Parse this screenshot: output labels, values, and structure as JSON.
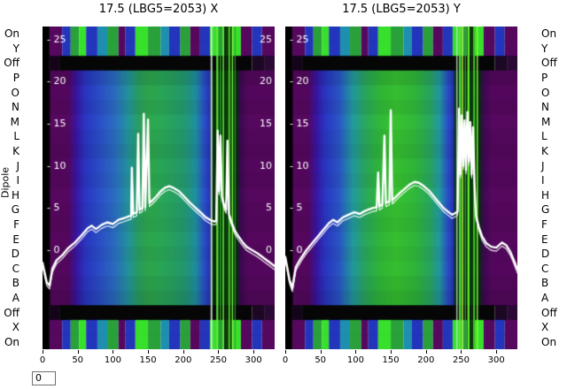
{
  "controls": {
    "frame_value": "0"
  },
  "axes": {
    "dipole_label": "Dipole",
    "row_labels": [
      "On",
      "Y",
      "Off",
      "P",
      "O",
      "N",
      "M",
      "L",
      "K",
      "J",
      "I",
      "H",
      "G",
      "F",
      "E",
      "D",
      "C",
      "B",
      "A",
      "Off",
      "X",
      "On"
    ],
    "row_types": [
      "stripe",
      "stripe",
      "off",
      "main",
      "main",
      "main",
      "main",
      "main",
      "main",
      "main",
      "main",
      "main",
      "main",
      "main",
      "main",
      "main",
      "main",
      "main",
      "main",
      "off",
      "stripe",
      "stripe"
    ],
    "row_shade": [
      0,
      0,
      0,
      0.1,
      0.02,
      0.06,
      0,
      0.04,
      0.08,
      0.02,
      0.05,
      0,
      0.03,
      0.06,
      0.01,
      0.05,
      0.02,
      0.07,
      0.12,
      0,
      0,
      0
    ],
    "x_tick_labels": [
      "0",
      "50",
      "100",
      "150",
      "200",
      "250",
      "300"
    ],
    "x_tick_values": [
      0,
      50,
      100,
      150,
      200,
      250,
      300
    ],
    "value_axis": {
      "ticks": [
        25,
        20,
        15,
        10,
        5,
        0
      ],
      "zero_frac": 0.693,
      "unit_frac": 0.0261
    }
  },
  "heatmap": {
    "stripe_segments": [
      [
        0,
        10,
        "#000000"
      ],
      [
        10,
        28,
        "#55085e"
      ],
      [
        28,
        40,
        "#2235bb"
      ],
      [
        40,
        52,
        "#29a03a"
      ],
      [
        52,
        62,
        "#37e02a"
      ],
      [
        62,
        78,
        "#2235bb"
      ],
      [
        78,
        92,
        "#1e8fae"
      ],
      [
        92,
        108,
        "#29a03a"
      ],
      [
        108,
        118,
        "#55085e"
      ],
      [
        118,
        132,
        "#2235bb"
      ],
      [
        132,
        150,
        "#37e02a"
      ],
      [
        150,
        168,
        "#29a03a"
      ],
      [
        168,
        180,
        "#1e8fae"
      ],
      [
        180,
        196,
        "#2235bb"
      ],
      [
        196,
        210,
        "#29a03a"
      ],
      [
        210,
        224,
        "#55085e"
      ],
      [
        224,
        238,
        "#2235bb"
      ],
      [
        238,
        248,
        "#37e02a"
      ],
      [
        248,
        258,
        "#29a03a"
      ],
      [
        258,
        270,
        "#0a300a"
      ],
      [
        270,
        282,
        "#37e02a"
      ],
      [
        282,
        298,
        "#55085e"
      ],
      [
        298,
        312,
        "#2235bb"
      ],
      [
        312,
        330,
        "#55085e"
      ]
    ],
    "off_segments": [
      [
        0,
        10,
        "#000000"
      ],
      [
        10,
        24,
        "#14041a"
      ],
      [
        24,
        298,
        "#060606"
      ],
      [
        298,
        316,
        "#1c0724"
      ],
      [
        316,
        330,
        "#2a0a34"
      ]
    ]
  },
  "chart_data": [
    {
      "type": "heatmap",
      "panel": "X",
      "title": "17.5 (LBG5=2053) X",
      "x_range": [
        0,
        330
      ],
      "right_labels": true,
      "field_stops": [
        [
          0,
          "#000000"
        ],
        [
          9,
          "#000000"
        ],
        [
          12,
          "#55085e"
        ],
        [
          36,
          "#55085e"
        ],
        [
          48,
          "#3a15a2"
        ],
        [
          60,
          "#2a35c2"
        ],
        [
          82,
          "#2b50c8"
        ],
        [
          104,
          "#2a70c0"
        ],
        [
          122,
          "#23949c"
        ],
        [
          138,
          "#2aa05e"
        ],
        [
          152,
          "#2ea84c"
        ],
        [
          170,
          "#2aa858"
        ],
        [
          188,
          "#27a062"
        ],
        [
          205,
          "#239878"
        ],
        [
          218,
          "#1f8fa2"
        ],
        [
          230,
          "#2a50c8"
        ],
        [
          237,
          "#2937bd"
        ],
        [
          241,
          "#06300a"
        ],
        [
          276,
          "#06300a"
        ],
        [
          281,
          "#3a0a52"
        ],
        [
          292,
          "#55085e"
        ],
        [
          330,
          "#55085e"
        ]
      ],
      "overlay_stripes": [
        {
          "x": 239,
          "w": 2.5,
          "c": "#d8ece4",
          "a": 0.85
        },
        {
          "x": 247,
          "w": 3,
          "c": "#5ef03a",
          "a": 0.9
        },
        {
          "x": 252,
          "w": 2,
          "c": "#2f9e2f",
          "a": 0.9
        },
        {
          "x": 256,
          "w": 2,
          "c": "#66ff33",
          "a": 0.9
        },
        {
          "x": 260,
          "w": 2,
          "c": "#123f12",
          "a": 0.9
        },
        {
          "x": 264,
          "w": 3,
          "c": "#44cc22",
          "a": 0.9
        },
        {
          "x": 269,
          "w": 2,
          "c": "#7dff3f",
          "a": 0.9
        },
        {
          "x": 273,
          "w": 1.5,
          "c": "#2f9e2f",
          "a": 0.9
        }
      ],
      "curve": [
        [
          0,
          -1.5
        ],
        [
          6,
          -3.8
        ],
        [
          10,
          -4.2
        ],
        [
          14,
          -2.2
        ],
        [
          20,
          -1.2
        ],
        [
          28,
          -0.6
        ],
        [
          36,
          0.2
        ],
        [
          46,
          0.9
        ],
        [
          56,
          1.8
        ],
        [
          64,
          2.6
        ],
        [
          70,
          2.9
        ],
        [
          76,
          2.5
        ],
        [
          84,
          3.0
        ],
        [
          92,
          3.3
        ],
        [
          100,
          3.1
        ],
        [
          108,
          3.6
        ],
        [
          116,
          3.8
        ],
        [
          122,
          4.0
        ],
        [
          126,
          4.1
        ],
        [
          127,
          9.8
        ],
        [
          129,
          4.3
        ],
        [
          134,
          4.5
        ],
        [
          136,
          13.8
        ],
        [
          138,
          4.8
        ],
        [
          142,
          5.0
        ],
        [
          144,
          16.2
        ],
        [
          146,
          5.1
        ],
        [
          150,
          15.5
        ],
        [
          152,
          5.6
        ],
        [
          156,
          5.9
        ],
        [
          162,
          6.4
        ],
        [
          168,
          7.0
        ],
        [
          174,
          7.4
        ],
        [
          180,
          7.6
        ],
        [
          186,
          7.4
        ],
        [
          194,
          7.0
        ],
        [
          202,
          6.3
        ],
        [
          210,
          5.6
        ],
        [
          218,
          5.0
        ],
        [
          226,
          4.4
        ],
        [
          232,
          3.9
        ],
        [
          238,
          3.6
        ],
        [
          244,
          3.4
        ],
        [
          247,
          3.5
        ],
        [
          249,
          14.2
        ],
        [
          251,
          7.0
        ],
        [
          253,
          13.6
        ],
        [
          255,
          6.4
        ],
        [
          258,
          5.4
        ],
        [
          261,
          4.8
        ],
        [
          263,
          13.0
        ],
        [
          265,
          4.3
        ],
        [
          269,
          3.3
        ],
        [
          273,
          2.4
        ],
        [
          278,
          1.7
        ],
        [
          284,
          1.0
        ],
        [
          290,
          0.4
        ],
        [
          298,
          0.0
        ],
        [
          306,
          -0.4
        ],
        [
          314,
          -0.9
        ],
        [
          322,
          -1.4
        ],
        [
          330,
          -1.9
        ]
      ]
    },
    {
      "type": "heatmap",
      "panel": "Y",
      "title": "17.5 (LBG5=2053) Y",
      "x_range": [
        0,
        330
      ],
      "right_labels": false,
      "field_stops": [
        [
          0,
          "#000000"
        ],
        [
          9,
          "#000000"
        ],
        [
          12,
          "#55085e"
        ],
        [
          32,
          "#55085e"
        ],
        [
          44,
          "#3a15a2"
        ],
        [
          56,
          "#2a35c2"
        ],
        [
          76,
          "#2a55c8"
        ],
        [
          96,
          "#239aa0"
        ],
        [
          114,
          "#2aa85c"
        ],
        [
          134,
          "#30b83a"
        ],
        [
          158,
          "#38c230"
        ],
        [
          184,
          "#30b83a"
        ],
        [
          204,
          "#2aa85c"
        ],
        [
          219,
          "#239aa0"
        ],
        [
          231,
          "#2a50c8"
        ],
        [
          238,
          "#2937bd"
        ],
        [
          242,
          "#06300a"
        ],
        [
          276,
          "#06300a"
        ],
        [
          281,
          "#3a0a52"
        ],
        [
          293,
          "#55085e"
        ],
        [
          330,
          "#55085e"
        ]
      ],
      "overlay_stripes": [
        {
          "x": 243,
          "w": 2,
          "c": "#bfe8c2",
          "a": 0.8
        },
        {
          "x": 247,
          "w": 3,
          "c": "#5ef03a",
          "a": 0.9
        },
        {
          "x": 251,
          "w": 2,
          "c": "#baff52",
          "a": 0.9
        },
        {
          "x": 255,
          "w": 2,
          "c": "#2f9e2f",
          "a": 0.9
        },
        {
          "x": 259,
          "w": 3,
          "c": "#66ff33",
          "a": 0.9
        },
        {
          "x": 264,
          "w": 2,
          "c": "#123f12",
          "a": 0.9
        },
        {
          "x": 267,
          "w": 3,
          "c": "#44cc22",
          "a": 0.9
        },
        {
          "x": 272,
          "w": 2,
          "c": "#7dff3f",
          "a": 0.9
        }
      ],
      "curve": [
        [
          0,
          -0.8
        ],
        [
          6,
          -3.5
        ],
        [
          10,
          -4.5
        ],
        [
          15,
          -2.0
        ],
        [
          22,
          -1.0
        ],
        [
          30,
          0.0
        ],
        [
          38,
          0.8
        ],
        [
          46,
          1.6
        ],
        [
          54,
          2.4
        ],
        [
          62,
          3.2
        ],
        [
          68,
          3.6
        ],
        [
          74,
          3.3
        ],
        [
          82,
          3.9
        ],
        [
          90,
          4.2
        ],
        [
          98,
          4.5
        ],
        [
          106,
          4.3
        ],
        [
          112,
          4.6
        ],
        [
          118,
          4.8
        ],
        [
          124,
          5.0
        ],
        [
          130,
          5.1
        ],
        [
          132,
          9.2
        ],
        [
          134,
          5.2
        ],
        [
          138,
          5.4
        ],
        [
          141,
          13.6
        ],
        [
          143,
          5.6
        ],
        [
          148,
          5.8
        ],
        [
          150,
          16.6
        ],
        [
          152,
          5.9
        ],
        [
          157,
          6.3
        ],
        [
          163,
          6.8
        ],
        [
          170,
          7.3
        ],
        [
          177,
          7.8
        ],
        [
          184,
          8.1
        ],
        [
          190,
          8.0
        ],
        [
          197,
          7.6
        ],
        [
          204,
          7.1
        ],
        [
          211,
          6.4
        ],
        [
          218,
          5.7
        ],
        [
          225,
          5.0
        ],
        [
          231,
          4.6
        ],
        [
          237,
          4.2
        ],
        [
          242,
          4.4
        ],
        [
          245,
          4.6
        ],
        [
          247,
          16.8
        ],
        [
          249,
          9.0
        ],
        [
          251,
          16.0
        ],
        [
          253,
          10.0
        ],
        [
          255,
          15.4
        ],
        [
          257,
          9.5
        ],
        [
          259,
          16.4
        ],
        [
          261,
          10.5
        ],
        [
          263,
          15.2
        ],
        [
          265,
          9.0
        ],
        [
          267,
          14.6
        ],
        [
          269,
          8.0
        ],
        [
          271,
          4.2
        ],
        [
          275,
          2.8
        ],
        [
          280,
          1.6
        ],
        [
          286,
          0.8
        ],
        [
          293,
          0.4
        ],
        [
          300,
          0.3
        ],
        [
          308,
          0.9
        ],
        [
          314,
          0.6
        ],
        [
          320,
          -0.2
        ],
        [
          326,
          -1.4
        ],
        [
          330,
          -2.3
        ]
      ]
    }
  ]
}
